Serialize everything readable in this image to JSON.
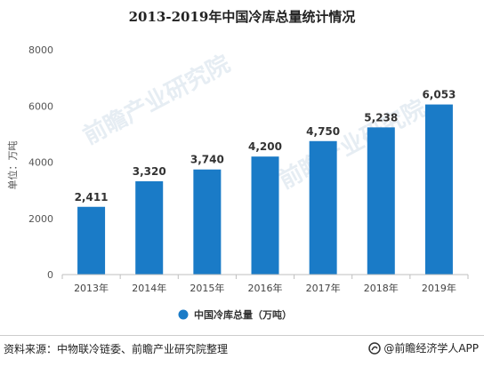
{
  "chart_data": {
    "type": "bar",
    "title": "2013-2019年中国冷库总量统计情况",
    "ylabel": "单位：万吨",
    "xlabel": "",
    "categories": [
      "2013年",
      "2014年",
      "2015年",
      "2016年",
      "2017年",
      "2018年",
      "2019年"
    ],
    "series": [
      {
        "name": "中国冷库总量（万吨）",
        "values": [
          2411,
          3320,
          3740,
          4200,
          4750,
          5238,
          6053
        ]
      }
    ],
    "data_labels": [
      "2,411",
      "3,320",
      "3,740",
      "4,200",
      "4,750",
      "5,238",
      "6,053"
    ],
    "ylim": [
      0,
      8000
    ],
    "yticks": [
      0,
      2000,
      4000,
      6000,
      8000
    ],
    "ytick_labels": [
      "0",
      "2000",
      "4000",
      "6000",
      "8000"
    ],
    "grid": false,
    "legend_position": "bottom",
    "colors": {
      "bar": "#1a7bc7",
      "axis": "#bfbfbf",
      "watermark": "#dce6ef"
    }
  },
  "watermark": "前瞻产业研究院",
  "footer": {
    "source": "资料来源：中物联冷链委、前瞻产业研究院整理",
    "brand": "@前瞻经济学人APP"
  }
}
